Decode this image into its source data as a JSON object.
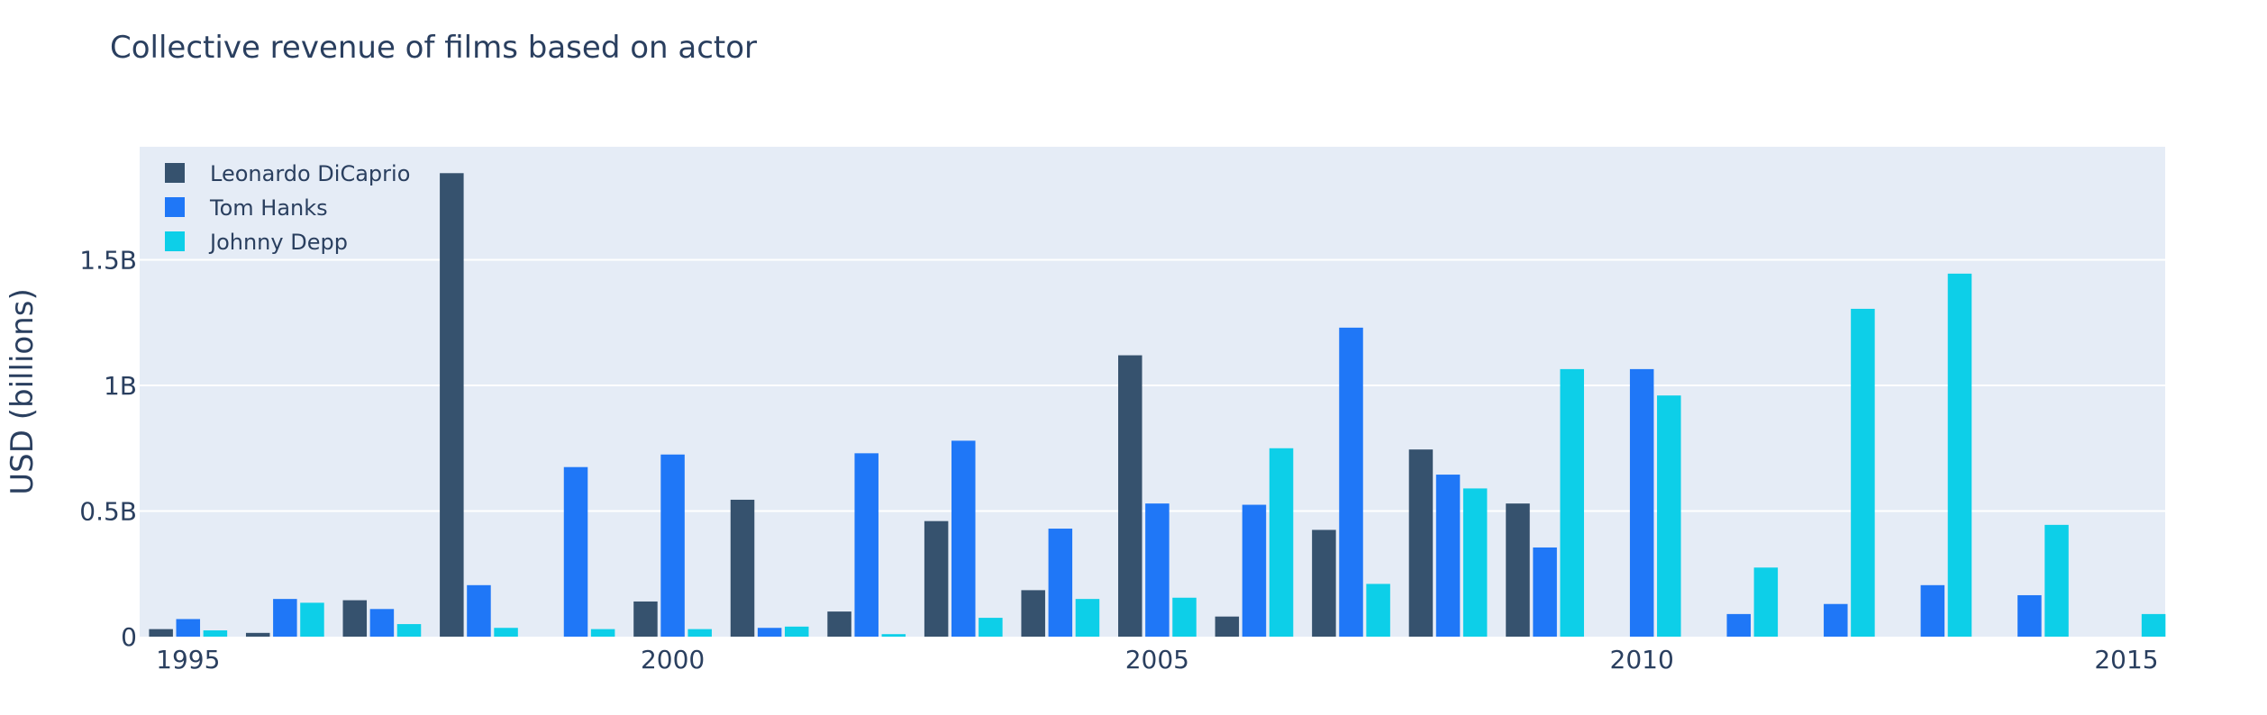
{
  "chart_data": {
    "type": "bar",
    "title": "Collective revenue of films based on actor",
    "xlabel": "",
    "ylabel": "USD (billions)",
    "x": [
      1995,
      1996,
      1997,
      1998,
      1999,
      2000,
      2001,
      2002,
      2003,
      2004,
      2005,
      2006,
      2007,
      2008,
      2009,
      2010,
      2011,
      2012,
      2013,
      2014,
      2015
    ],
    "xlim": [
      1994.5,
      2015.4
    ],
    "ylim": [
      0,
      1.95
    ],
    "x_ticks": [
      {
        "value": 1995,
        "label": "1995"
      },
      {
        "value": 2000,
        "label": "2000"
      },
      {
        "value": 2005,
        "label": "2005"
      },
      {
        "value": 2010,
        "label": "2010"
      },
      {
        "value": 2015,
        "label": "2015"
      }
    ],
    "y_ticks": [
      {
        "value": 0,
        "label": "0"
      },
      {
        "value": 0.5,
        "label": "0.5B"
      },
      {
        "value": 1.0,
        "label": "1B"
      },
      {
        "value": 1.5,
        "label": "1.5B"
      }
    ],
    "grid": true,
    "legend_position": "top-left",
    "series": [
      {
        "name": "Leonardo DiCaprio",
        "color": "#36526e",
        "values": [
          0.03,
          0.015,
          0.145,
          1.845,
          0,
          0.14,
          0.545,
          0.1,
          0.46,
          0.185,
          1.12,
          0.08,
          0.425,
          0.745,
          0.53,
          0,
          0,
          0,
          0,
          0,
          0
        ]
      },
      {
        "name": "Tom Hanks",
        "color": "#1f77f7",
        "values": [
          0.07,
          0.15,
          0.11,
          0.205,
          0.675,
          0.725,
          0.035,
          0.73,
          0.78,
          0.43,
          0.53,
          0.525,
          1.23,
          0.645,
          0.355,
          1.065,
          0.09,
          0.13,
          0.205,
          0.165,
          0
        ]
      },
      {
        "name": "Johnny Depp",
        "color": "#0dcfe8",
        "values": [
          0.025,
          0.135,
          0.05,
          0.035,
          0.03,
          0.03,
          0.04,
          0.01,
          0.075,
          0.15,
          0.155,
          0.75,
          0.21,
          0.59,
          1.065,
          0.96,
          0.275,
          1.305,
          1.445,
          0.445,
          0.09
        ]
      }
    ]
  }
}
